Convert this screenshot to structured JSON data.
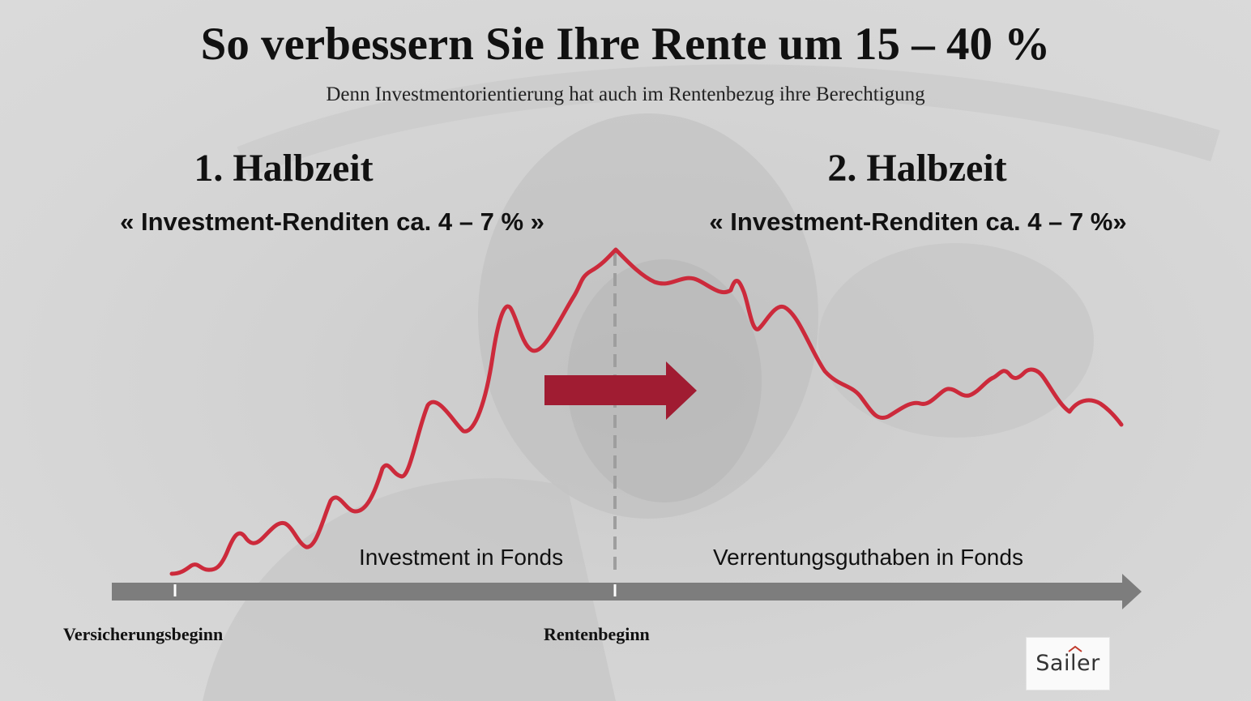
{
  "header": {
    "title": "So verbessern Sie Ihre Rente um 15 – 40 %",
    "subtitle": "Denn Investmentorientierung hat auch im Rentenbezug ihre Berechtigung"
  },
  "halves": [
    {
      "title": "1. Halbzeit",
      "returns": "« Investment-Renditen ca. 4 – 7 % »"
    },
    {
      "title": "2. Halbzeit",
      "returns": "« Investment-Renditen ca. 4 – 7 %»"
    }
  ],
  "phases": [
    {
      "label": "Investment in Fonds"
    },
    {
      "label": "Verrentungsguthaben in Fonds"
    }
  ],
  "timeline": {
    "start_label": "Versicherungsbeginn",
    "pension_label": "Rentenbeginn"
  },
  "logo": {
    "text": "Sailer"
  },
  "colors": {
    "curve": "#cc2a3b",
    "arrow": "#a01c32",
    "timeline": "#7d7d7d",
    "divider": "#9e9e9e"
  }
}
